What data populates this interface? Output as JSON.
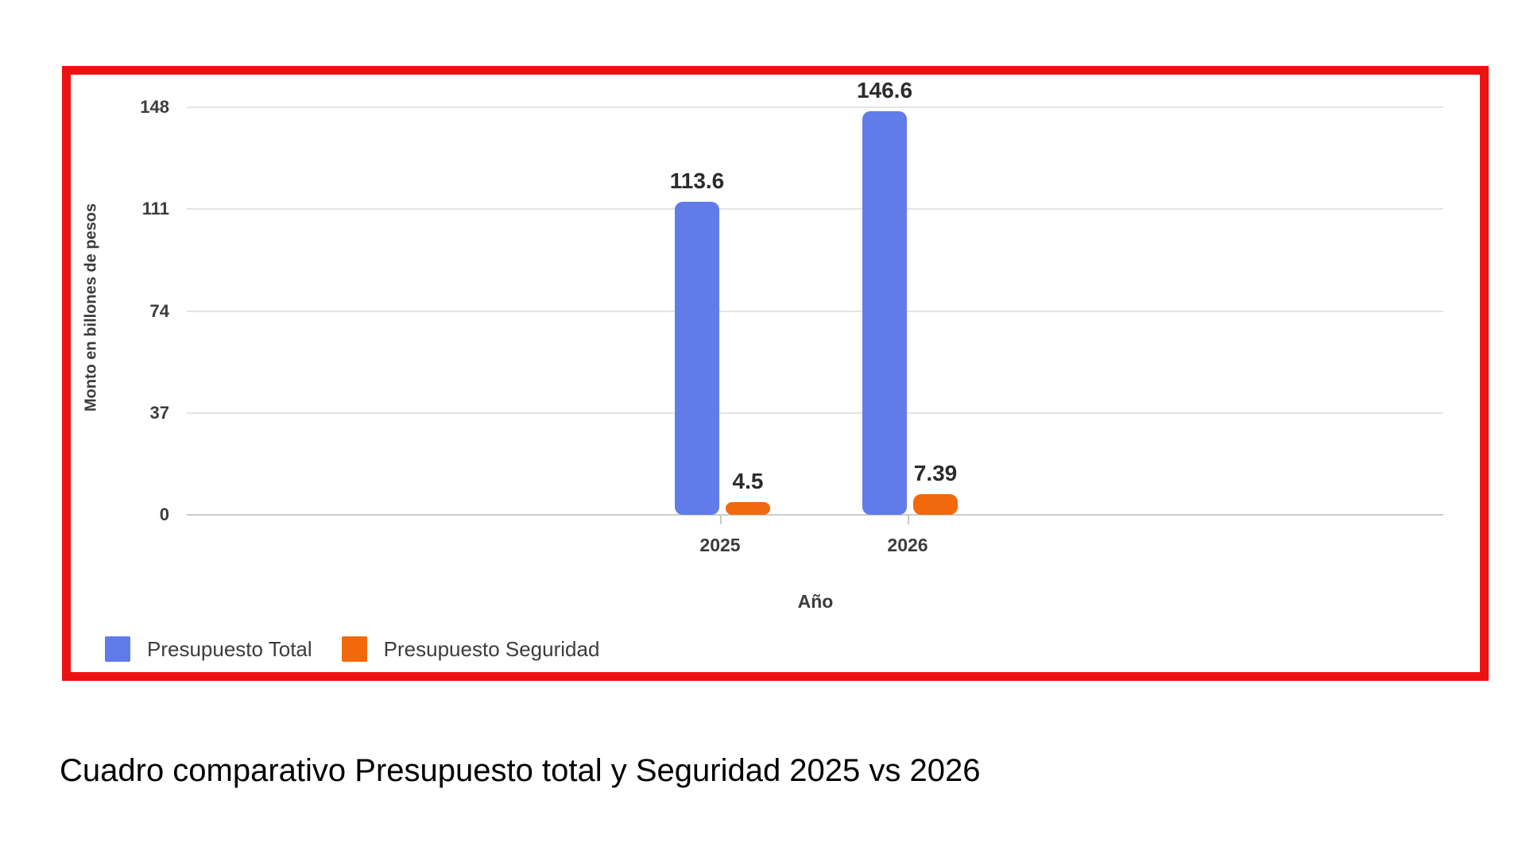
{
  "frame": {
    "border_color": "#ED1212"
  },
  "chart_data": {
    "type": "bar",
    "title": "",
    "categories": [
      "2025",
      "2026"
    ],
    "series": [
      {
        "name": "Presupuesto Total",
        "color": "#617BE9",
        "values": [
          113.6,
          146.6
        ]
      },
      {
        "name": "Presupuesto Seguridad",
        "color": "#F2690D",
        "values": [
          4.5,
          7.39
        ]
      }
    ],
    "xlabel": "Año",
    "ylabel": "Monto en billones de pesos",
    "ylim": [
      0,
      148
    ],
    "yticks": [
      0,
      37,
      74,
      111,
      148
    ],
    "grid": true,
    "legend_position": "bottom",
    "value_labels": true,
    "gridline_color": "#e4e4e4",
    "baseline_color": "#cccccc"
  },
  "caption": "Cuadro comparativo Presupuesto total y Seguridad 2025 vs 2026"
}
